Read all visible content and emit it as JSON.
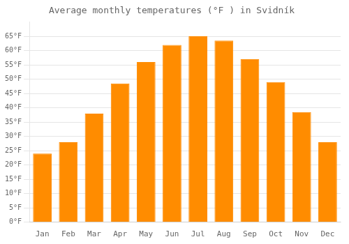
{
  "chart_data": {
    "type": "bar",
    "title": "Average monthly temperatures (°F ) in Svidník",
    "categories": [
      "Jan",
      "Feb",
      "Mar",
      "Apr",
      "May",
      "Jun",
      "Jul",
      "Aug",
      "Sep",
      "Oct",
      "Nov",
      "Dec"
    ],
    "values": [
      24,
      28,
      38,
      48.5,
      56,
      62,
      65,
      63.5,
      57,
      49,
      38.5,
      28
    ],
    "color": "#ff8c00",
    "ylim": [
      0,
      70
    ],
    "yticks": [
      {
        "value": 0,
        "label": "0°F"
      },
      {
        "value": 5,
        "label": "5°F"
      },
      {
        "value": 10,
        "label": "10°F"
      },
      {
        "value": 15,
        "label": "15°F"
      },
      {
        "value": 20,
        "label": "20°F"
      },
      {
        "value": 25,
        "label": "25°F"
      },
      {
        "value": 30,
        "label": "30°F"
      },
      {
        "value": 35,
        "label": "35°F"
      },
      {
        "value": 40,
        "label": "40°F"
      },
      {
        "value": 45,
        "label": "45°F"
      },
      {
        "value": 50,
        "label": "50°F"
      },
      {
        "value": 55,
        "label": "55°F"
      },
      {
        "value": 60,
        "label": "60°F"
      },
      {
        "value": 65,
        "label": "65°F"
      }
    ],
    "grid": true
  }
}
